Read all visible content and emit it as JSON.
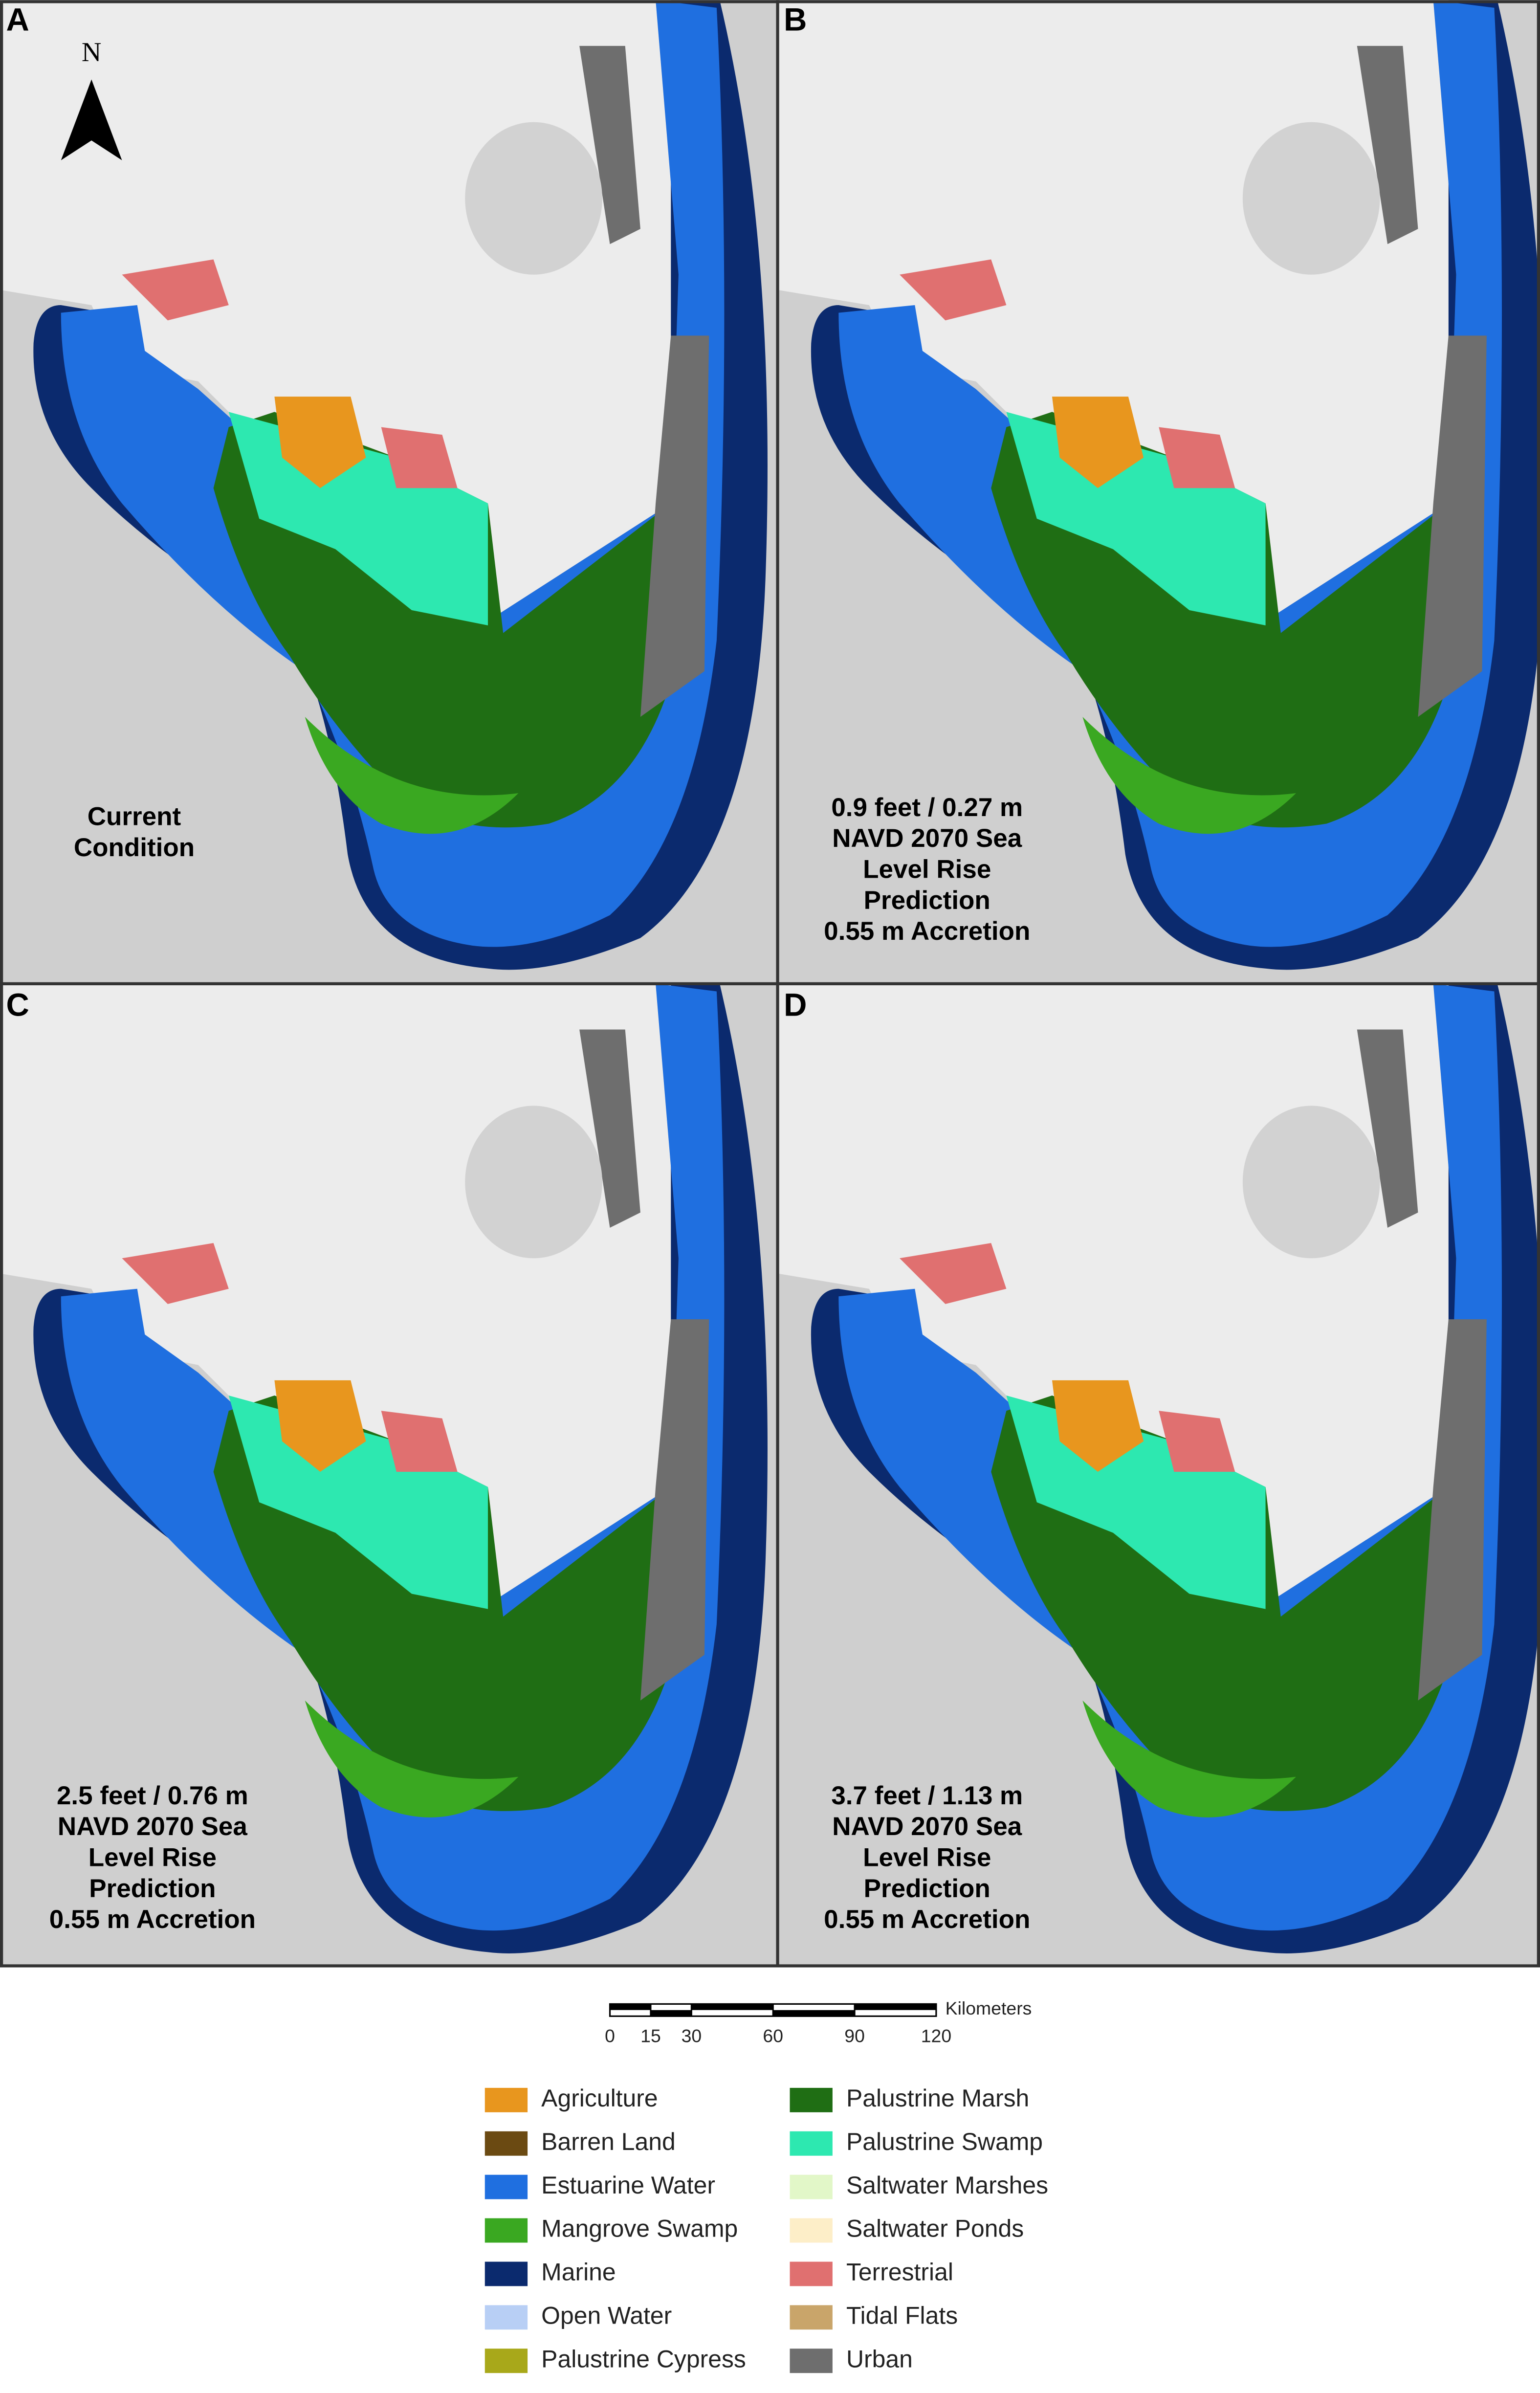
{
  "north_arrow": "N",
  "panels": [
    {
      "label": "A",
      "caption": [
        "Current",
        "Condition"
      ]
    },
    {
      "label": "B",
      "caption": [
        "0.9 feet / 0.27 m",
        "NAVD 2070 Sea",
        "Level Rise",
        "Prediction",
        "0.55 m   Accretion"
      ]
    },
    {
      "label": "C",
      "caption": [
        "2.5 feet / 0.76 m",
        "NAVD 2070 Sea",
        "Level Rise",
        "Prediction",
        "0.55 m Accretion"
      ]
    },
    {
      "label": "D",
      "caption": [
        "3.7 feet / 1.13 m",
        "NAVD 2070 Sea",
        "Level Rise",
        "Prediction",
        "0.55 m Accretion"
      ]
    }
  ],
  "scale_bar": {
    "unit": "Kilometers",
    "ticks": [
      0,
      15,
      30,
      60,
      90,
      120
    ]
  },
  "legend": [
    {
      "name": "Agriculture",
      "color": "#e8961e"
    },
    {
      "name": "Barren Land",
      "color": "#6b4a12"
    },
    {
      "name": "Estuarine Water",
      "color": "#1f6fe0"
    },
    {
      "name": "Mangrove Swamp",
      "color": "#3aa821"
    },
    {
      "name": "Marine",
      "color": "#0b2a6e"
    },
    {
      "name": "Open Water",
      "color": "#b8cff5"
    },
    {
      "name": "Palustrine Cypress",
      "color": "#a8a81a"
    },
    {
      "name": "Palustrine Marsh",
      "color": "#1f6e14"
    },
    {
      "name": "Palustrine Swamp",
      "color": "#2de8b0"
    },
    {
      "name": "Saltwater Marshes",
      "color": "#e2f7c8"
    },
    {
      "name": "Saltwater Ponds",
      "color": "#fdeec8"
    },
    {
      "name": "Terrestrial",
      "color": "#e07070"
    },
    {
      "name": "Tidal Flats",
      "color": "#c9a56a"
    },
    {
      "name": "Urban",
      "color": "#6e6e6e"
    }
  ]
}
